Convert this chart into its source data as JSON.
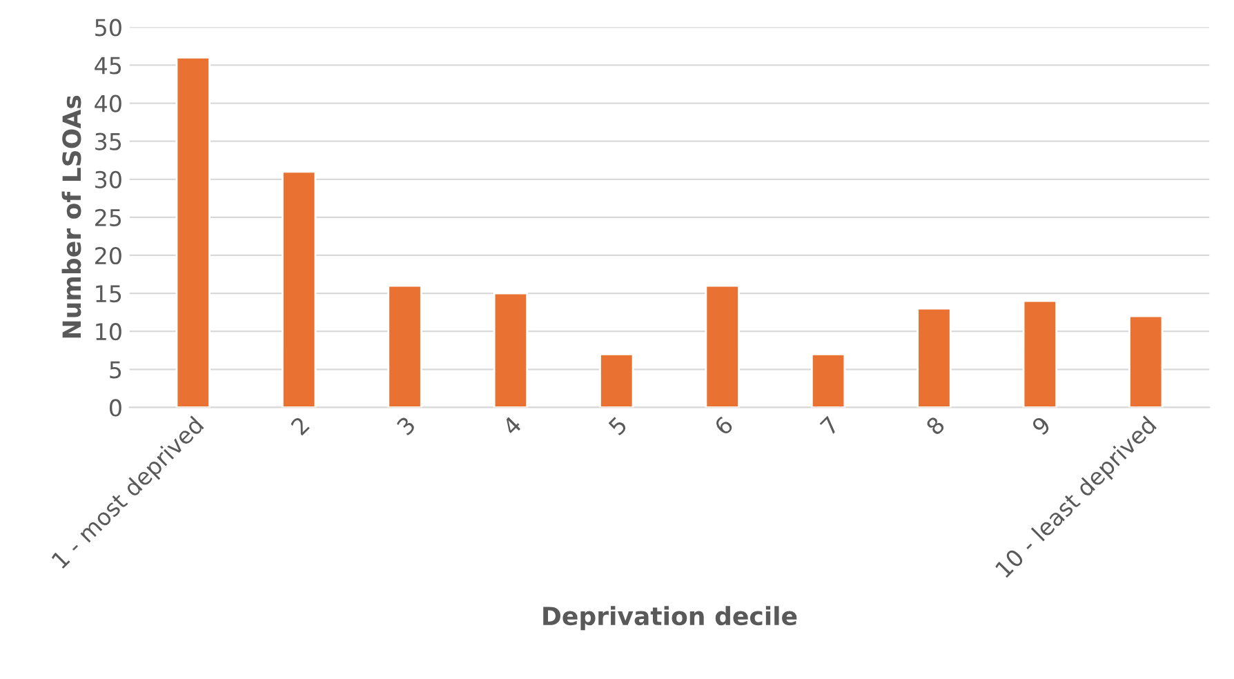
{
  "chart_data": {
    "type": "bar",
    "xlabel": "Deprivation decile",
    "ylabel": "Number of LSOAs",
    "categories": [
      "1 - most deprived",
      "2",
      "3",
      "4",
      "5",
      "6",
      "7",
      "8",
      "9",
      "10 - least deprived"
    ],
    "values": [
      46,
      31,
      16,
      15,
      7,
      16,
      7,
      13,
      14,
      12
    ],
    "color": "#e97132",
    "ylim": [
      0,
      50
    ],
    "yticks": [
      0,
      5,
      10,
      15,
      20,
      25,
      30,
      35,
      40,
      45,
      50
    ],
    "grid": "y",
    "legend": false
  }
}
